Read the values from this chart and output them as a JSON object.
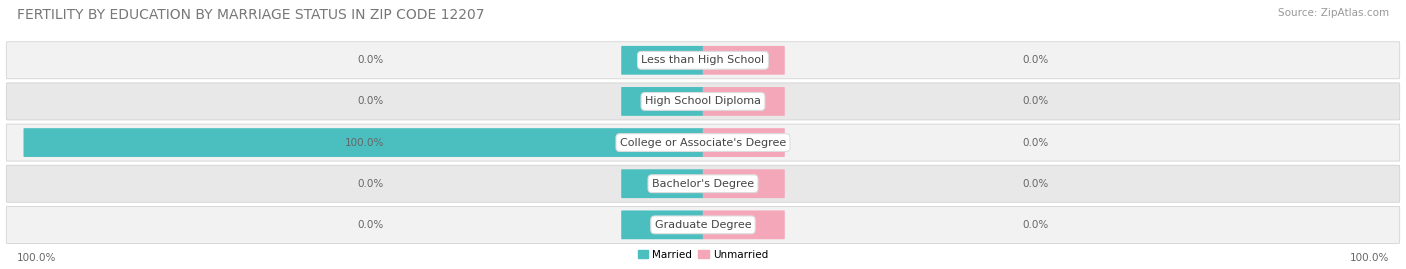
{
  "title": "FERTILITY BY EDUCATION BY MARRIAGE STATUS IN ZIP CODE 12207",
  "source": "Source: ZipAtlas.com",
  "categories": [
    "Less than High School",
    "High School Diploma",
    "College or Associate's Degree",
    "Bachelor's Degree",
    "Graduate Degree"
  ],
  "married_values": [
    0.0,
    0.0,
    100.0,
    0.0,
    0.0
  ],
  "unmarried_values": [
    0.0,
    0.0,
    0.0,
    0.0,
    0.0
  ],
  "married_color": "#4BBFC0",
  "unmarried_color": "#F4A7B9",
  "row_bg_light": "#F2F2F2",
  "row_bg_dark": "#E8E8E8",
  "max_value": 100.0,
  "legend_married": "Married",
  "legend_unmarried": "Unmarried",
  "left_axis_label": "100.0%",
  "right_axis_label": "100.0%",
  "title_fontsize": 10,
  "source_fontsize": 7.5,
  "label_fontsize": 7.5,
  "category_fontsize": 8,
  "figsize": [
    14.06,
    2.69
  ],
  "dpi": 100
}
